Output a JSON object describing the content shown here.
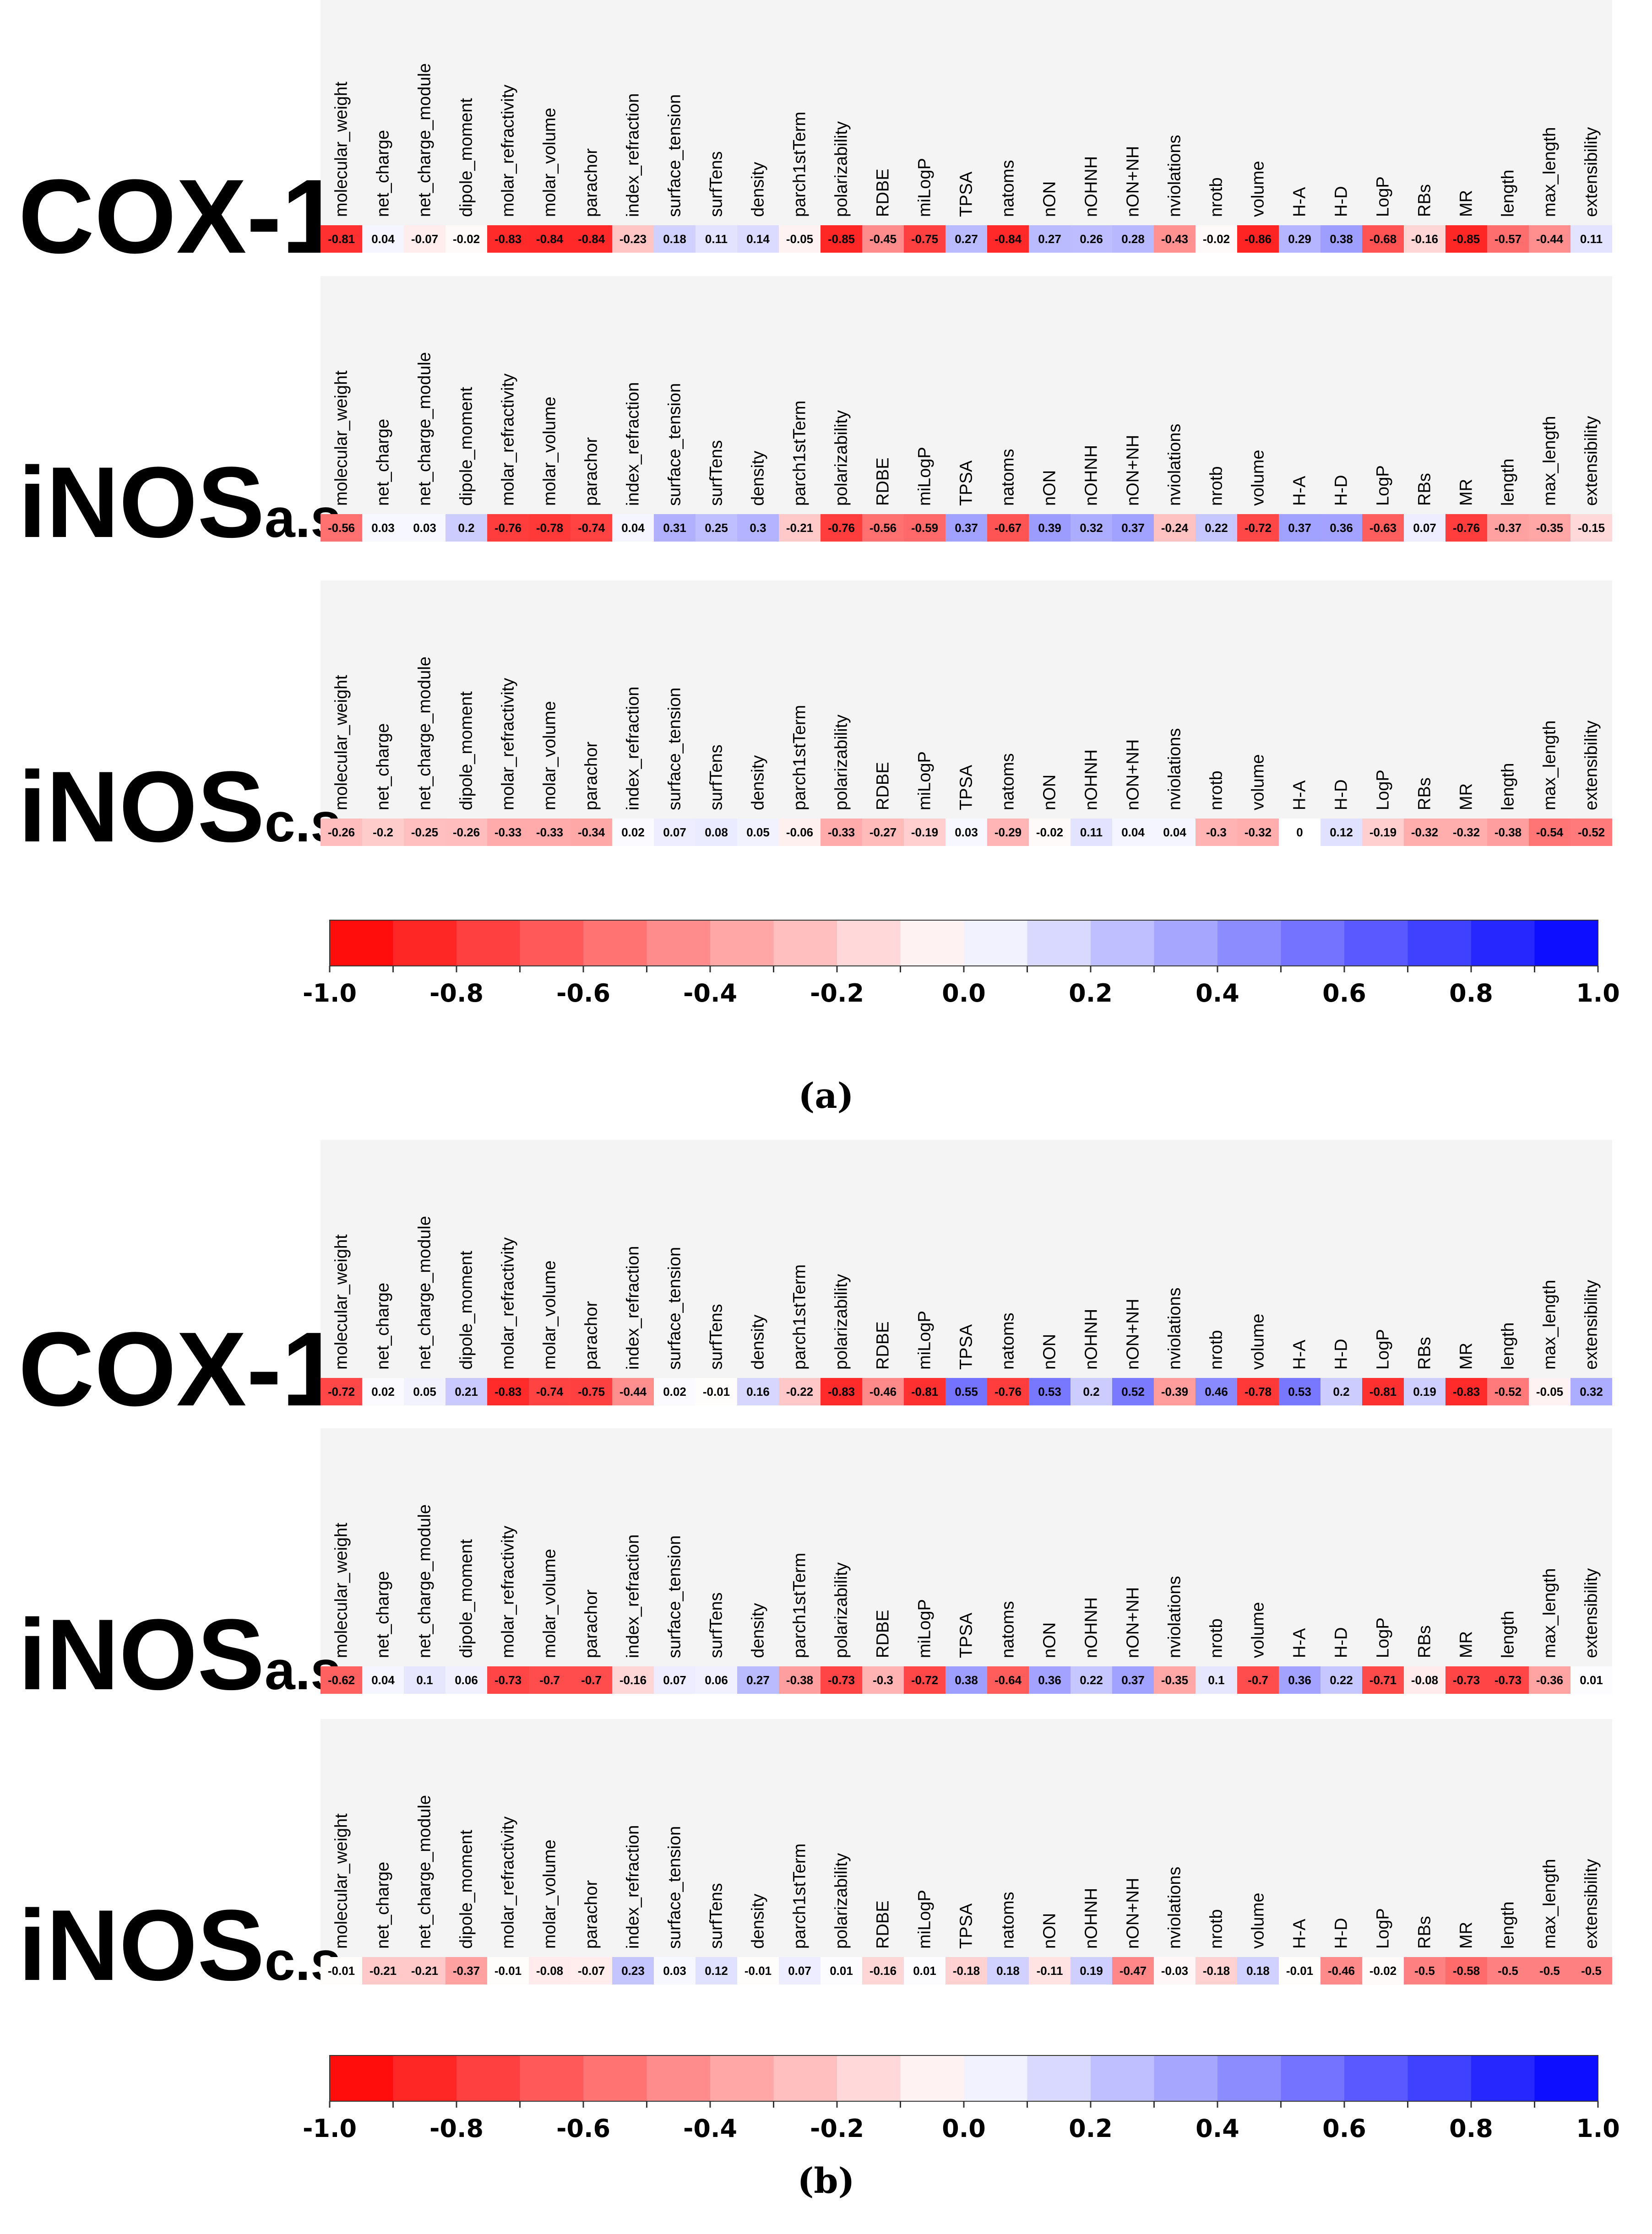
{
  "chart_data": [
    {
      "type": "heatmap",
      "panel_label": "(a)",
      "descriptors": [
        "molecular_weight",
        "net_charge",
        "net_charge_module",
        "dipole_moment",
        "molar_refractivity",
        "molar_volume",
        "parachor",
        "index_refraction",
        "surface_tension",
        "surfTens",
        "density",
        "parch1stTerm",
        "polarizability",
        "RDBE",
        "miLogP",
        "TPSA",
        "natoms",
        "nON",
        "nOHNH",
        "nON+NH",
        "nviolations",
        "nrotb",
        "volume",
        "H-A",
        "H-D",
        "LogP",
        "RBs",
        "MR",
        "length",
        "max_length",
        "extensibility"
      ],
      "rows": [
        {
          "label": "COX-1",
          "label_main": "COX-1",
          "label_sub": "",
          "values": [
            -0.81,
            0.04,
            -0.07,
            -0.02,
            -0.83,
            -0.84,
            -0.84,
            -0.23,
            0.18,
            0.11,
            0.14,
            -0.05,
            -0.85,
            -0.45,
            -0.75,
            0.27,
            -0.84,
            0.27,
            0.26,
            0.28,
            -0.43,
            -0.02,
            -0.86,
            0.29,
            0.38,
            -0.68,
            -0.16,
            -0.85,
            -0.57,
            -0.44,
            0.11
          ]
        },
        {
          "label": "iNOSa.s.",
          "label_main": "iNOS",
          "label_sub": "a.s.",
          "values": [
            -0.56,
            0.03,
            0.03,
            0.2,
            -0.76,
            -0.78,
            -0.74,
            0.04,
            0.31,
            0.25,
            0.3,
            -0.21,
            -0.76,
            -0.56,
            -0.59,
            0.37,
            -0.67,
            0.39,
            0.32,
            0.37,
            -0.24,
            0.22,
            -0.72,
            0.37,
            0.36,
            -0.63,
            0.07,
            -0.76,
            -0.37,
            -0.35,
            -0.15
          ]
        },
        {
          "label": "iNOSc.s.",
          "label_main": "iNOS",
          "label_sub": "c.s.",
          "values": [
            -0.26,
            -0.2,
            -0.25,
            -0.26,
            -0.33,
            -0.33,
            -0.34,
            0.02,
            0.07,
            0.08,
            0.05,
            -0.06,
            -0.33,
            -0.27,
            -0.19,
            0.03,
            -0.29,
            -0.02,
            0.11,
            0.04,
            0.04,
            -0.3,
            -0.32,
            0,
            0.12,
            -0.19,
            -0.32,
            -0.32,
            -0.38,
            -0.54,
            -0.52
          ]
        }
      ],
      "colorbar": {
        "min": -1.0,
        "max": 1.0,
        "ticks": [
          "-1.0",
          "-0.8",
          "-0.6",
          "-0.4",
          "-0.2",
          "0.0",
          "0.2",
          "0.4",
          "0.6",
          "0.8",
          "1.0"
        ],
        "low_color": "#ff0000",
        "mid_color": "#ffffff",
        "high_color": "#0000ff"
      }
    },
    {
      "type": "heatmap",
      "panel_label": "(b)",
      "descriptors": [
        "molecular_weight",
        "net_charge",
        "net_charge_module",
        "dipole_moment",
        "molar_refractivity",
        "molar_volume",
        "parachor",
        "index_refraction",
        "surface_tension",
        "surfTens",
        "density",
        "parch1stTerm",
        "polarizability",
        "RDBE",
        "miLogP",
        "TPSA",
        "natoms",
        "nON",
        "nOHNH",
        "nON+NH",
        "nviolations",
        "nrotb",
        "volume",
        "H-A",
        "H-D",
        "LogP",
        "RBs",
        "MR",
        "length",
        "max_length",
        "extensibility"
      ],
      "rows": [
        {
          "label": "COX-1",
          "label_main": "COX-1",
          "label_sub": "",
          "values": [
            -0.72,
            0.02,
            0.05,
            0.21,
            -0.83,
            -0.74,
            -0.75,
            -0.44,
            0.02,
            -0.01,
            0.16,
            -0.22,
            -0.83,
            -0.46,
            -0.81,
            0.55,
            -0.76,
            0.53,
            0.2,
            0.52,
            -0.39,
            0.46,
            -0.78,
            0.53,
            0.2,
            -0.81,
            0.19,
            -0.83,
            -0.52,
            -0.05,
            0.32
          ]
        },
        {
          "label": "iNOSa.s.",
          "label_main": "iNOS",
          "label_sub": "a.s.",
          "values": [
            -0.62,
            0.04,
            0.1,
            0.06,
            -0.73,
            -0.7,
            -0.7,
            -0.16,
            0.07,
            0.06,
            0.27,
            -0.38,
            -0.73,
            -0.3,
            -0.72,
            0.38,
            -0.64,
            0.36,
            0.22,
            0.37,
            -0.35,
            0.1,
            -0.7,
            0.36,
            0.22,
            -0.71,
            -0.08,
            -0.73,
            -0.73,
            -0.36,
            0.01
          ]
        },
        {
          "label": "iNOSc.s.",
          "label_main": "iNOS",
          "label_sub": "c.s.",
          "values": [
            -0.01,
            -0.21,
            -0.21,
            -0.37,
            -0.01,
            -0.08,
            -0.07,
            0.23,
            0.03,
            0.12,
            -0.01,
            0.07,
            0.01,
            -0.16,
            0.01,
            -0.18,
            0.18,
            -0.11,
            0.19,
            -0.47,
            -0.03,
            -0.18,
            0.18,
            -0.01,
            -0.46,
            -0.02,
            -0.5,
            -0.58,
            -0.5,
            -0.5,
            -0.5
          ]
        }
      ],
      "colorbar": {
        "min": -1.0,
        "max": 1.0,
        "ticks": [
          "-1.0",
          "-0.8",
          "-0.6",
          "-0.4",
          "-0.2",
          "0.0",
          "0.2",
          "0.4",
          "0.6",
          "0.8",
          "1.0"
        ],
        "low_color": "#ff0000",
        "mid_color": "#ffffff",
        "high_color": "#0000ff"
      }
    }
  ]
}
